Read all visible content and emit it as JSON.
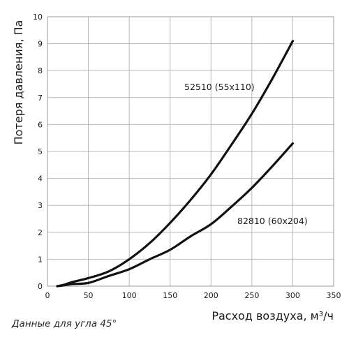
{
  "chart_data": {
    "type": "line",
    "xlabel": "Расход воздуха, м³/ч",
    "ylabel": "Потеря давления, Па",
    "xlim": [
      0,
      350
    ],
    "ylim": [
      0,
      10
    ],
    "x_ticks": [
      0,
      50,
      100,
      150,
      200,
      250,
      300,
      350
    ],
    "y_ticks": [
      0,
      1,
      2,
      3,
      4,
      5,
      6,
      7,
      8,
      9,
      10
    ],
    "grid": true,
    "series": [
      {
        "name": "52510 (55x110)",
        "x": [
          12,
          20,
          30,
          50,
          75,
          100,
          125,
          150,
          175,
          200,
          225,
          250,
          275,
          300
        ],
        "y": [
          0,
          0.05,
          0.15,
          0.3,
          0.55,
          1.0,
          1.6,
          2.35,
          3.2,
          4.15,
          5.25,
          6.4,
          7.7,
          9.1
        ]
      },
      {
        "name": "82810 (60x204)",
        "x": [
          12,
          20,
          30,
          50,
          75,
          100,
          125,
          150,
          175,
          200,
          225,
          250,
          275,
          300
        ],
        "y": [
          0,
          0.03,
          0.08,
          0.12,
          0.38,
          0.63,
          1.0,
          1.35,
          1.85,
          2.3,
          2.95,
          3.65,
          4.45,
          5.3
        ]
      }
    ],
    "annotations": [
      "52510 (55x110)",
      "82810 (60x204)"
    ]
  },
  "footnote": "Данные для угла 45°"
}
